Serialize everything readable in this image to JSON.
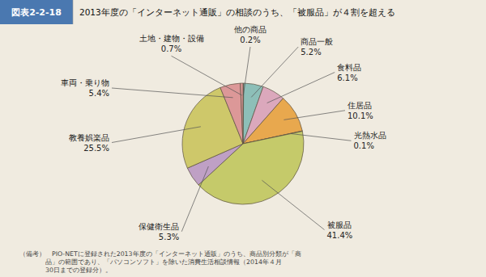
{
  "chart_data": {
    "type": "pie",
    "title": "2013年度の「インターネット通販」の相談のうち、「被服品」が４割を超える",
    "annotations": [
      "図表2-2-18",
      "（備考）　PIO-NETに登録された2013年度の「インターネット通販」のうち、商品別分類が「商",
      "　　　　品」の範囲であり、「パソコンソフト」を除いた消費生活相談情報（2014年４月",
      "　　　　30日までの登録分）。"
    ],
    "categories": [
      "他の商品",
      "商品一般",
      "食料品",
      "住居品",
      "光熱水品",
      "被服品",
      "保健衛生品",
      "教養娯楽品",
      "車両・乗り物",
      "土地・建物・設備"
    ],
    "values": [
      0.2,
      5.2,
      6.1,
      10.1,
      0.1,
      41.4,
      5.3,
      25.5,
      5.4,
      0.7
    ],
    "value_labels": [
      "0.2%",
      "5.2%",
      "6.1%",
      "10.1%",
      "0.1%",
      "41.4%",
      "5.3%",
      "25.5%",
      "5.4%",
      "0.7%"
    ],
    "colors": [
      "#9aada8",
      "#8dbfb8",
      "#dba8bc",
      "#e8a84e",
      "#e8a84e",
      "#c5ca6a",
      "#bfa0c5",
      "#cec86a",
      "#dc9898",
      "#dc9898"
    ],
    "data_labels": true
  }
}
